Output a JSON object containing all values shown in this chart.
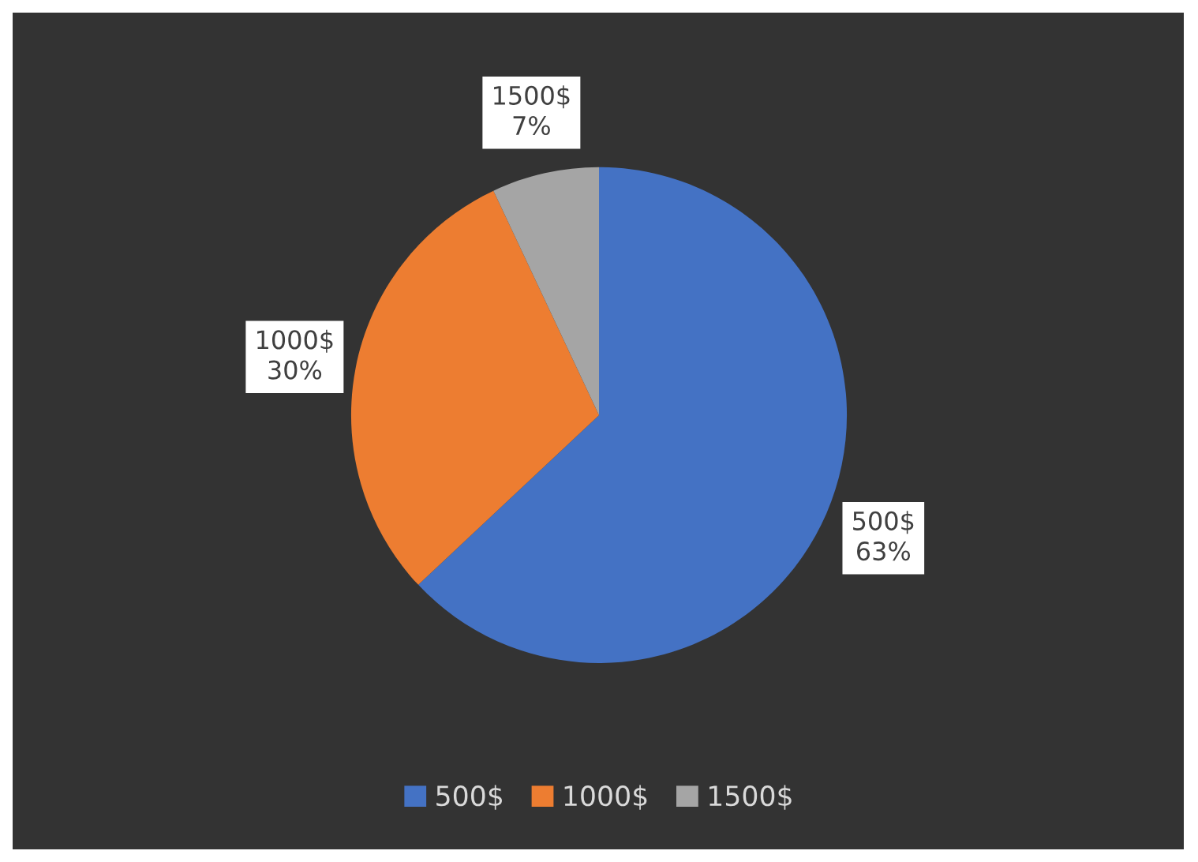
{
  "chart_data": {
    "type": "pie",
    "categories": [
      "500$",
      "1000$",
      "1500$"
    ],
    "values": [
      63,
      30,
      7
    ],
    "colors": [
      "#4472c4",
      "#ed7d31",
      "#a5a5a5"
    ],
    "value_labels": [
      "63%",
      "30%",
      "7%"
    ],
    "legend": "bottom"
  }
}
